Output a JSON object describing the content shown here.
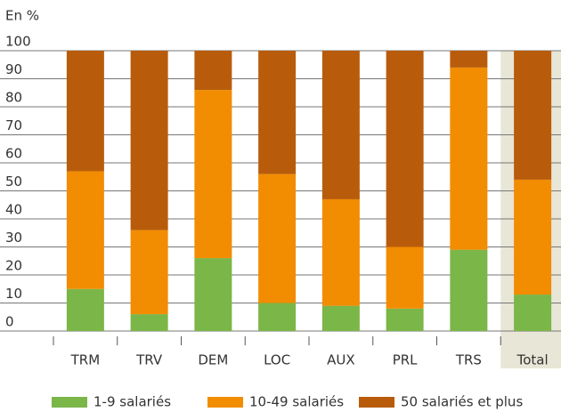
{
  "chart_data": {
    "type": "bar",
    "stacked": true,
    "y_axis_label": "En %",
    "categories": [
      "TRM",
      "TRV",
      "DEM",
      "LOC",
      "AUX",
      "PRL",
      "TRS",
      "Total"
    ],
    "series": [
      {
        "name": "1-9 salariés",
        "color": "#7ab648",
        "values": [
          15,
          6,
          26,
          10,
          9,
          8,
          29,
          13
        ]
      },
      {
        "name": "10-49 salariés",
        "color": "#f28c00",
        "values": [
          42,
          30,
          60,
          46,
          38,
          22,
          65,
          41
        ]
      },
      {
        "name": "50 salariés et plus",
        "color": "#b85c0c",
        "values": [
          43,
          64,
          14,
          44,
          53,
          70,
          6,
          46
        ]
      }
    ],
    "ylim": [
      0,
      100
    ],
    "yticks": [
      0,
      10,
      20,
      30,
      40,
      50,
      60,
      70,
      80,
      90,
      100
    ],
    "grid": true,
    "highlight_color": "#e8e6d6",
    "legend": "bottom"
  }
}
